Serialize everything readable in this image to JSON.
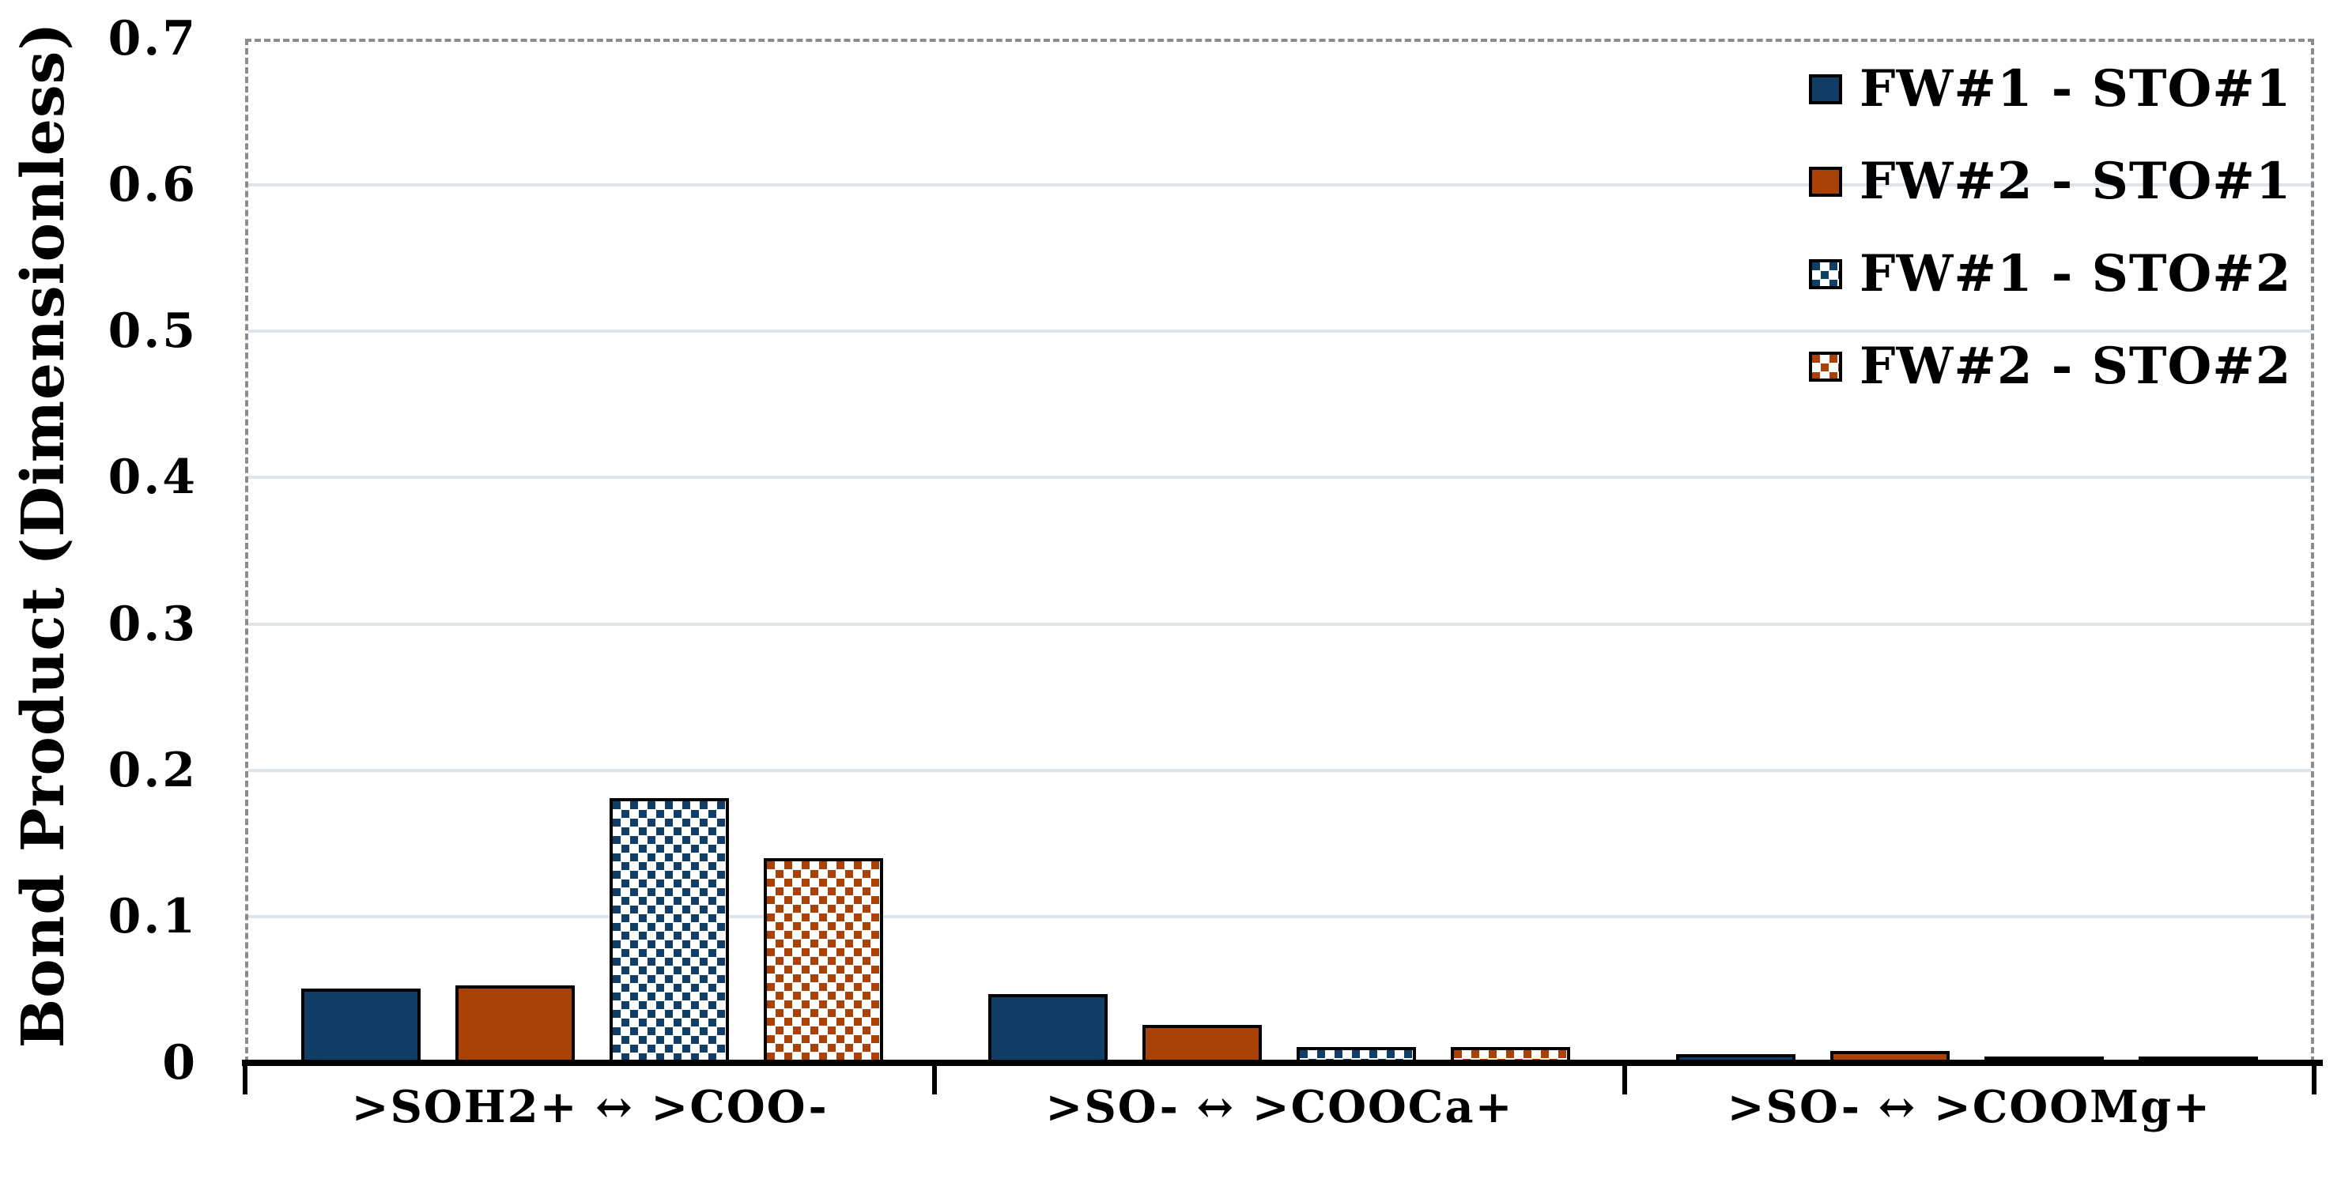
{
  "figure": {
    "background": "#ffffff",
    "frame_border_color": "#8c8c8c",
    "frame_border_style": "dashed",
    "gridline_color": "#dde4ec",
    "axis_color": "#000000",
    "bar_outline_color": "#000000"
  },
  "chart_data": {
    "type": "bar",
    "title": "",
    "xlabel": "",
    "ylabel": "Bond Product (Dimensionless)",
    "ylim": [
      0,
      0.7
    ],
    "ytick_step": 0.1,
    "ytick_labels": [
      "0",
      "0.1",
      "0.2",
      "0.3",
      "0.4",
      "0.5",
      "0.6",
      "0.7"
    ],
    "grid": "horizontal",
    "legend_position": "top-right-inside",
    "categories": [
      ">SOH2+ ↔ >COO-",
      ">SO- ↔ >COOCa+",
      ">SO- ↔ >COOMg+"
    ],
    "series": [
      {
        "name": "FW#1 - STO#1",
        "color": "#113e66",
        "pattern": "solid",
        "values": [
          0.051,
          0.047,
          0.006
        ]
      },
      {
        "name": "FW#2 - STO#1",
        "color": "#aa4107",
        "pattern": "solid",
        "values": [
          0.053,
          0.026,
          0.008
        ]
      },
      {
        "name": "FW#1 - STO#2",
        "color": "#113e66",
        "pattern": "checker-dots",
        "values": [
          0.181,
          0.011,
          0.002
        ]
      },
      {
        "name": "FW#2 - STO#2",
        "color": "#aa4107",
        "pattern": "checker-dots",
        "values": [
          0.14,
          0.011,
          0.003
        ]
      }
    ]
  }
}
